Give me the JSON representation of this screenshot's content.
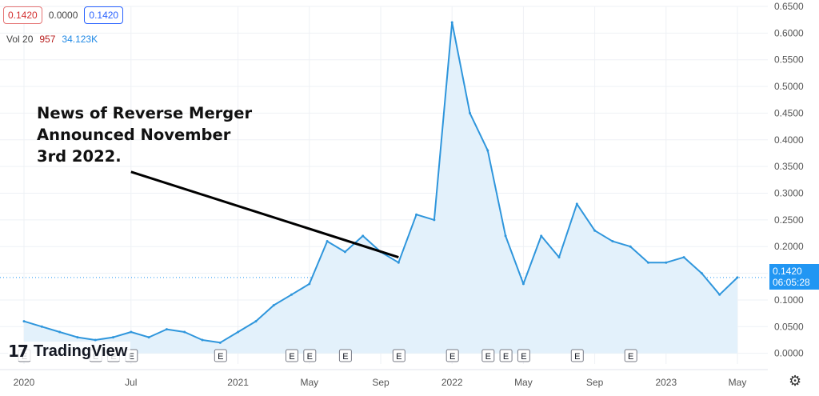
{
  "header": {
    "price_open": "0.1420",
    "change": "0.0000",
    "price_close": "0.1420",
    "vol_label": "Vol 20",
    "vol_value_1": "957",
    "vol_value_2": "34.123K"
  },
  "annotation": {
    "lines": [
      "News of Reverse Merger",
      "Announced November",
      "3rd 2022."
    ]
  },
  "price_tag": {
    "price": "0.1420",
    "countdown": "06:05:28"
  },
  "logo": {
    "mark": "17",
    "text": "TradingView"
  },
  "colors": {
    "line": "#2f96dc",
    "fill": "#e3f1fb",
    "grid": "#eef1f5",
    "axis_text": "#555555",
    "tag": "#2196f3",
    "annotation_arrow": "#000000"
  },
  "icons": {
    "settings": "gear-icon"
  },
  "chart_data": {
    "type": "area",
    "title": "",
    "xlabel": "",
    "ylabel": "",
    "x_range": [
      "2020-01",
      "2023-05"
    ],
    "ylim": [
      -0.02,
      0.65
    ],
    "y_ticks": [
      "0.6500",
      "0.6000",
      "0.5500",
      "0.5000",
      "0.4500",
      "0.4000",
      "0.3500",
      "0.3000",
      "0.2500",
      "0.2000",
      "0.1500",
      "0.1000",
      "0.0500",
      "0.0000"
    ],
    "y_tick_values": [
      0.65,
      0.6,
      0.55,
      0.5,
      0.45,
      0.4,
      0.35,
      0.3,
      0.25,
      0.2,
      0.15,
      0.1,
      0.05,
      0.0
    ],
    "x_ticks": [
      {
        "label": "2020",
        "x": "2020-01"
      },
      {
        "label": "Jul",
        "x": "2020-07"
      },
      {
        "label": "2021",
        "x": "2021-01"
      },
      {
        "label": "May",
        "x": "2021-05"
      },
      {
        "label": "Sep",
        "x": "2021-09"
      },
      {
        "label": "2022",
        "x": "2022-01"
      },
      {
        "label": "May",
        "x": "2022-05"
      },
      {
        "label": "Sep",
        "x": "2022-09"
      },
      {
        "label": "2023",
        "x": "2023-01"
      },
      {
        "label": "May",
        "x": "2023-05"
      }
    ],
    "earnings_markers": [
      "2020-01",
      "2020-05",
      "2020-06",
      "2020-07",
      "2020-12",
      "2021-04",
      "2021-05",
      "2021-07",
      "2021-10",
      "2022-01",
      "2022-03",
      "2022-04",
      "2022-05",
      "2022-08",
      "2022-11"
    ],
    "earnings_label": "E",
    "series": [
      {
        "x": [
          "2020-01",
          "2020-02",
          "2020-03",
          "2020-04",
          "2020-05",
          "2020-06",
          "2020-07",
          "2020-08",
          "2020-09",
          "2020-10",
          "2020-11",
          "2020-12",
          "2021-01",
          "2021-02",
          "2021-03",
          "2021-04",
          "2021-05",
          "2021-06",
          "2021-07",
          "2021-08",
          "2021-09",
          "2021-10",
          "2021-11",
          "2021-12",
          "2022-01",
          "2022-02",
          "2022-03",
          "2022-04",
          "2022-05",
          "2022-06",
          "2022-07",
          "2022-08",
          "2022-09",
          "2022-10",
          "2022-11",
          "2022-12",
          "2023-01",
          "2023-02",
          "2023-03",
          "2023-04",
          "2023-05"
        ],
        "values": [
          0.06,
          0.05,
          0.04,
          0.03,
          0.025,
          0.03,
          0.04,
          0.03,
          0.045,
          0.04,
          0.025,
          0.02,
          0.04,
          0.06,
          0.09,
          0.11,
          0.13,
          0.21,
          0.19,
          0.22,
          0.19,
          0.17,
          0.26,
          0.25,
          0.62,
          0.45,
          0.38,
          0.22,
          0.13,
          0.22,
          0.18,
          0.28,
          0.23,
          0.21,
          0.2,
          0.17,
          0.17,
          0.18,
          0.15,
          0.11,
          0.142
        ]
      }
    ],
    "annotation_arrow": {
      "from": [
        "2020-07",
        0.34
      ],
      "to": [
        "2021-10",
        0.18
      ]
    },
    "last_value": 0.142,
    "grid": true,
    "legend": "none"
  }
}
